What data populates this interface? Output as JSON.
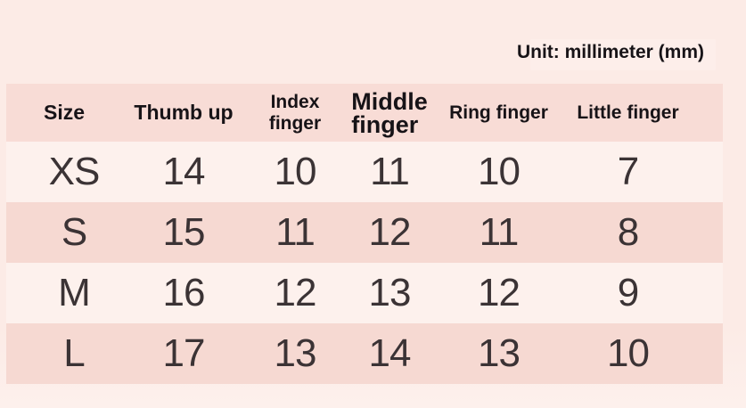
{
  "unit_label": "Unit: millimeter (mm)",
  "table": {
    "columns": [
      {
        "key": "size",
        "label": "Size"
      },
      {
        "key": "thumb",
        "label": "Thumb up"
      },
      {
        "key": "index",
        "label": "Index finger"
      },
      {
        "key": "middle",
        "label": "Middle finger"
      },
      {
        "key": "ring",
        "label": "Ring finger"
      },
      {
        "key": "little",
        "label": "Little finger"
      }
    ],
    "rows": [
      {
        "size": "XS",
        "values": [
          "14",
          "10",
          "11",
          "10",
          "7"
        ]
      },
      {
        "size": "S",
        "values": [
          "15",
          "11",
          "12",
          "11",
          "8"
        ]
      },
      {
        "size": "M",
        "values": [
          "16",
          "12",
          "13",
          "12",
          "9"
        ]
      },
      {
        "size": "L",
        "values": [
          "17",
          "13",
          "14",
          "13",
          "10"
        ]
      }
    ]
  },
  "colors": {
    "page_bg": "#fcebe6",
    "page_bg_bottom": "#fdf0ec",
    "header_band": "#f8dcd6",
    "row_light": "#fdf1ed",
    "row_dark": "#f6d9d2",
    "heading_text": "#171317",
    "number_text": "#3b3335",
    "unit_patch": "#fdeeea"
  }
}
